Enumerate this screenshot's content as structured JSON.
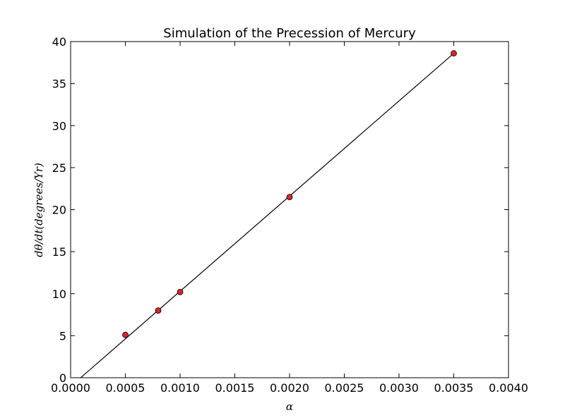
{
  "chart_data": {
    "type": "scatter",
    "title": "Simulation of the Precession of Mercury",
    "xlabel": "α",
    "ylabel": "dθ/dt(degrees/Yr)",
    "xlim": [
      0.0,
      0.004
    ],
    "ylim": [
      0,
      40
    ],
    "x_ticks": [
      "0.0000",
      "0.0005",
      "0.0010",
      "0.0015",
      "0.0020",
      "0.0025",
      "0.0030",
      "0.0035",
      "0.0040"
    ],
    "y_ticks": [
      "0",
      "5",
      "10",
      "15",
      "20",
      "25",
      "30",
      "35",
      "40"
    ],
    "grid": false,
    "series": [
      {
        "kind": "points",
        "color": "#d62728",
        "x": [
          0.0005,
          0.0008,
          0.001,
          0.002,
          0.0035
        ],
        "y": [
          5.1,
          8.0,
          10.2,
          21.5,
          38.6
        ]
      },
      {
        "kind": "fit-line",
        "color": "#000000",
        "x": [
          3e-05,
          0.0035
        ],
        "y": [
          -0.7,
          38.6
        ]
      }
    ]
  }
}
